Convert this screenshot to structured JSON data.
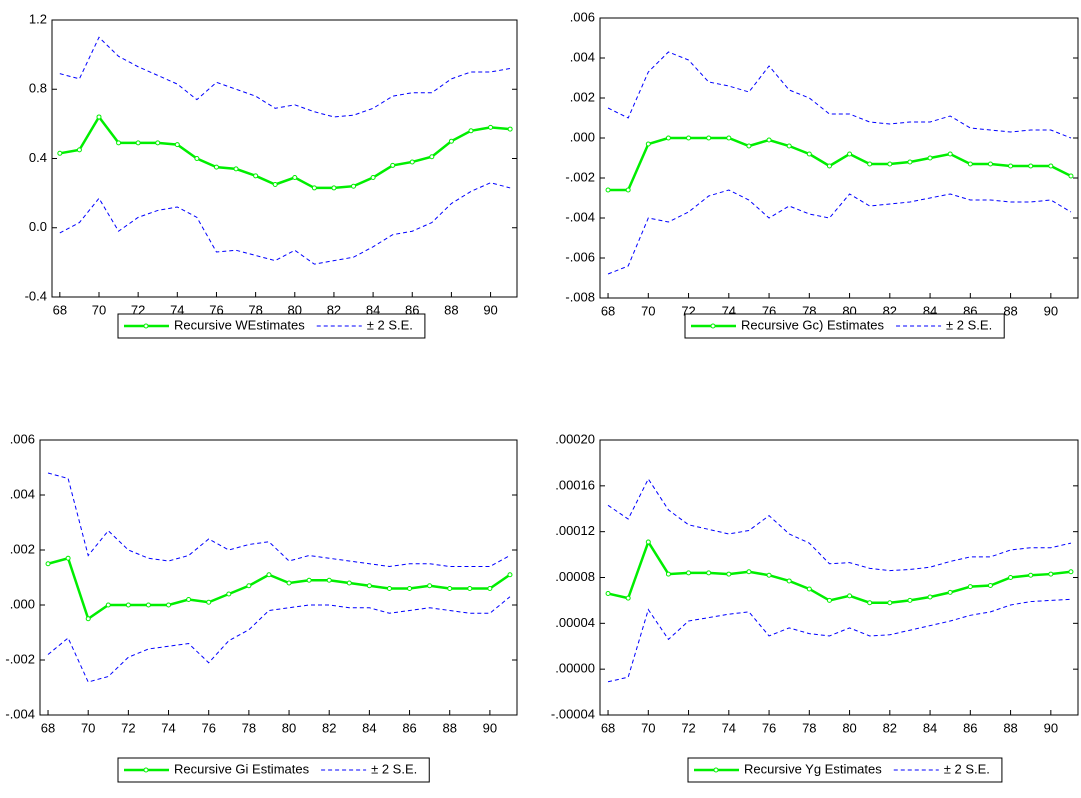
{
  "chart_data": [
    {
      "type": "line",
      "x": [
        68,
        69,
        70,
        71,
        72,
        73,
        74,
        75,
        76,
        77,
        78,
        79,
        80,
        81,
        82,
        83,
        84,
        85,
        86,
        87,
        88,
        89,
        90,
        91
      ],
      "xlim": [
        67.6,
        91.35
      ],
      "xticks": [
        68,
        70,
        72,
        74,
        76,
        78,
        80,
        82,
        84,
        86,
        88,
        90
      ],
      "ylim": [
        -0.4,
        1.2
      ],
      "yticks": [
        -0.4,
        {
          "value": 0,
          "label": "0.0"
        },
        0.4,
        0.8,
        1.2
      ],
      "series": [
        {
          "name": "Recursive WEstimates",
          "color": "#00ee00",
          "values": [
            0.43,
            0.45,
            0.64,
            0.49,
            0.49,
            0.49,
            0.48,
            0.4,
            0.35,
            0.34,
            0.3,
            0.25,
            0.29,
            0.23,
            0.23,
            0.24,
            0.29,
            0.36,
            0.38,
            0.41,
            0.5,
            0.56,
            0.58,
            0.57
          ]
        },
        {
          "name": "± 2 S.E.",
          "color": "#0000ff",
          "values": [
            0.89,
            0.86,
            1.1,
            0.99,
            0.93,
            0.88,
            0.83,
            0.74,
            0.84,
            0.8,
            0.76,
            0.69,
            0.71,
            0.67,
            0.64,
            0.65,
            0.69,
            0.76,
            0.78,
            0.78,
            0.86,
            0.9,
            0.9,
            0.92
          ]
        },
        {
          "color": "#0000ff",
          "values": [
            -0.03,
            0.03,
            0.17,
            -0.02,
            0.06,
            0.1,
            0.12,
            0.06,
            -0.14,
            -0.13,
            -0.16,
            -0.19,
            -0.13,
            -0.21,
            -0.19,
            -0.17,
            -0.11,
            -0.04,
            -0.02,
            0.03,
            0.14,
            0.21,
            0.26,
            0.23
          ]
        }
      ]
    },
    {
      "type": "line",
      "x": [
        68,
        69,
        70,
        71,
        72,
        73,
        74,
        75,
        76,
        77,
        78,
        79,
        80,
        81,
        82,
        83,
        84,
        85,
        86,
        87,
        88,
        89,
        90,
        91
      ],
      "xlim": [
        67.6,
        91.35
      ],
      "xticks": [
        68,
        70,
        72,
        74,
        76,
        78,
        80,
        82,
        84,
        86,
        88,
        90
      ],
      "ylim": [
        -0.008,
        0.006
      ],
      "yticks": [
        {
          "value": -0.008,
          "label": "-.008"
        },
        {
          "value": -0.006,
          "label": "-.006"
        },
        {
          "value": -0.004,
          "label": "-.004"
        },
        {
          "value": -0.002,
          "label": "-.002"
        },
        {
          "value": 0,
          "label": ".000"
        },
        {
          "value": 0.002,
          "label": ".002"
        },
        {
          "value": 0.004,
          "label": ".004"
        },
        {
          "value": 0.006,
          "label": ".006"
        }
      ],
      "series": [
        {
          "name": "Recursive Gc) Estimates",
          "color": "#00ee00",
          "values": [
            -0.0026,
            -0.0026,
            -0.0003,
            0.0,
            0.0,
            0.0,
            0.0,
            -0.0004,
            -0.0001,
            -0.0004,
            -0.0008,
            -0.0014,
            -0.0008,
            -0.0013,
            -0.0013,
            -0.0012,
            -0.001,
            -0.0008,
            -0.0013,
            -0.0013,
            -0.0014,
            -0.0014,
            -0.0014,
            -0.0019
          ]
        },
        {
          "name": "± 2 S.E.",
          "color": "#0000ff",
          "values": [
            0.0015,
            0.001,
            0.0033,
            0.0043,
            0.0039,
            0.0028,
            0.0026,
            0.0023,
            0.0036,
            0.0024,
            0.002,
            0.0012,
            0.0012,
            0.0008,
            0.0007,
            0.0008,
            0.0008,
            0.0011,
            0.0005,
            0.0004,
            0.0003,
            0.0004,
            0.0004,
            0.0
          ]
        },
        {
          "color": "#0000ff",
          "values": [
            -0.0068,
            -0.0064,
            -0.004,
            -0.0042,
            -0.0037,
            -0.0029,
            -0.0026,
            -0.0031,
            -0.004,
            -0.0034,
            -0.0038,
            -0.004,
            -0.0028,
            -0.0034,
            -0.0033,
            -0.0032,
            -0.003,
            -0.0028,
            -0.0031,
            -0.0031,
            -0.0032,
            -0.0032,
            -0.0031,
            -0.0037
          ]
        }
      ]
    },
    {
      "type": "line",
      "x": [
        68,
        69,
        70,
        71,
        72,
        73,
        74,
        75,
        76,
        77,
        78,
        79,
        80,
        81,
        82,
        83,
        84,
        85,
        86,
        87,
        88,
        89,
        90,
        91
      ],
      "xlim": [
        67.6,
        91.35
      ],
      "xticks": [
        68,
        70,
        72,
        74,
        76,
        78,
        80,
        82,
        84,
        86,
        88,
        90
      ],
      "ylim": [
        -0.004,
        0.006
      ],
      "yticks": [
        {
          "value": -0.004,
          "label": "-.004"
        },
        {
          "value": -0.002,
          "label": "-.002"
        },
        {
          "value": 0,
          "label": ".000"
        },
        {
          "value": 0.002,
          "label": ".002"
        },
        {
          "value": 0.004,
          "label": ".004"
        },
        {
          "value": 0.006,
          "label": ".006"
        }
      ],
      "series": [
        {
          "name": "Recursive Gi Estimates",
          "color": "#00ee00",
          "values": [
            0.0015,
            0.0017,
            -0.0005,
            0.0,
            0.0,
            0.0,
            0.0,
            0.0002,
            0.0001,
            0.0004,
            0.0007,
            0.0011,
            0.0008,
            0.0009,
            0.0009,
            0.0008,
            0.0007,
            0.0006,
            0.0006,
            0.0007,
            0.0006,
            0.0006,
            0.0006,
            0.0011
          ]
        },
        {
          "name": "± 2 S.E.",
          "color": "#0000ff",
          "values": [
            0.0048,
            0.0046,
            0.0018,
            0.0027,
            0.002,
            0.0017,
            0.0016,
            0.0018,
            0.0024,
            0.002,
            0.0022,
            0.0023,
            0.0016,
            0.0018,
            0.0017,
            0.0016,
            0.0015,
            0.0014,
            0.0015,
            0.0015,
            0.0014,
            0.0014,
            0.0014,
            0.0018
          ]
        },
        {
          "color": "#0000ff",
          "values": [
            -0.0018,
            -0.0012,
            -0.0028,
            -0.0026,
            -0.0019,
            -0.0016,
            -0.0015,
            -0.0014,
            -0.0021,
            -0.0013,
            -0.0009,
            -0.0002,
            -0.0001,
            0.0,
            0.0,
            -0.0001,
            -0.0001,
            -0.0003,
            -0.0002,
            -0.0001,
            -0.0002,
            -0.0003,
            -0.0003,
            0.0003
          ]
        }
      ]
    },
    {
      "type": "line",
      "x": [
        68,
        69,
        70,
        71,
        72,
        73,
        74,
        75,
        76,
        77,
        78,
        79,
        80,
        81,
        82,
        83,
        84,
        85,
        86,
        87,
        88,
        89,
        90,
        91
      ],
      "xlim": [
        67.6,
        91.35
      ],
      "xticks": [
        68,
        70,
        72,
        74,
        76,
        78,
        80,
        82,
        84,
        86,
        88,
        90
      ],
      "ylim": [
        -4e-05,
        0.0002
      ],
      "yticks": [
        {
          "value": -4e-05,
          "label": "-.00004"
        },
        {
          "value": 0,
          "label": ".00000"
        },
        {
          "value": 4e-05,
          "label": ".00004"
        },
        {
          "value": 8e-05,
          "label": ".00008"
        },
        {
          "value": 0.00012,
          "label": ".00012"
        },
        {
          "value": 0.00016,
          "label": ".00016"
        },
        {
          "value": 0.0002,
          "label": ".00020"
        }
      ],
      "series": [
        {
          "name": "Recursive Yg Estimates",
          "color": "#00ee00",
          "values": [
            6.6e-05,
            6.2e-05,
            0.000111,
            8.3e-05,
            8.4e-05,
            8.4e-05,
            8.3e-05,
            8.5e-05,
            8.2e-05,
            7.7e-05,
            7e-05,
            6e-05,
            6.4e-05,
            5.8e-05,
            5.8e-05,
            6e-05,
            6.3e-05,
            6.7e-05,
            7.2e-05,
            7.3e-05,
            8e-05,
            8.2e-05,
            8.3e-05,
            8.5e-05
          ]
        },
        {
          "name": "± 2 S.E.",
          "color": "#0000ff",
          "values": [
            0.000143,
            0.000131,
            0.000166,
            0.000139,
            0.000126,
            0.000122,
            0.000118,
            0.000121,
            0.000134,
            0.000118,
            0.00011,
            9.2e-05,
            9.3e-05,
            8.8e-05,
            8.6e-05,
            8.7e-05,
            8.9e-05,
            9.4e-05,
            9.8e-05,
            9.8e-05,
            0.000104,
            0.000106,
            0.000106,
            0.00011
          ]
        },
        {
          "color": "#0000ff",
          "values": [
            -1.1e-05,
            -7e-06,
            5.2e-05,
            2.6e-05,
            4.2e-05,
            4.5e-05,
            4.8e-05,
            5e-05,
            2.9e-05,
            3.6e-05,
            3.1e-05,
            2.9e-05,
            3.6e-05,
            2.9e-05,
            3e-05,
            3.4e-05,
            3.8e-05,
            4.2e-05,
            4.7e-05,
            5e-05,
            5.6e-05,
            5.9e-05,
            6e-05,
            6.1e-05
          ]
        }
      ]
    }
  ]
}
